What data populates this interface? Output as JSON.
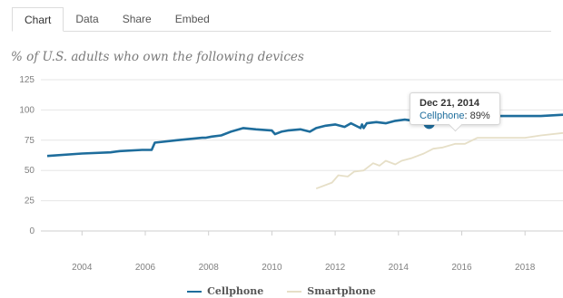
{
  "tabs": [
    {
      "label": "Chart",
      "active": true
    },
    {
      "label": "Data",
      "active": false
    },
    {
      "label": "Share",
      "active": false
    },
    {
      "label": "Embed",
      "active": false
    }
  ],
  "colors": {
    "cellphone": "#1e6d9c",
    "smartphone": "#e6dfc7",
    "grid": "#e6e6e6",
    "axis": "#cfcfcf"
  },
  "tooltip": {
    "date": "Dec 21, 2014",
    "series": "Cellphone",
    "value": "89%"
  },
  "chart_data": {
    "type": "line",
    "title": "% of U.S. adults who own the following devices",
    "xlabel": "",
    "ylabel": "",
    "ylim": [
      0,
      125
    ],
    "xlim": [
      2002.7,
      2019.2
    ],
    "yticks": [
      "0",
      "25",
      "50",
      "75",
      "100",
      "125"
    ],
    "xticks": [
      "2004",
      "2006",
      "2008",
      "2010",
      "2012",
      "2014",
      "2016",
      "2018"
    ],
    "grid": true,
    "legend": "bottom-center",
    "series": [
      {
        "name": "Cellphone",
        "x": [
          2002.9,
          2004.0,
          2004.9,
          2005.2,
          2005.9,
          2006.2,
          2006.3,
          2007.0,
          2007.8,
          2007.9,
          2008.1,
          2008.4,
          2008.7,
          2009.1,
          2009.5,
          2010.0,
          2010.1,
          2010.3,
          2010.5,
          2010.9,
          2011.2,
          2011.4,
          2011.7,
          2012.0,
          2012.3,
          2012.5,
          2012.8,
          2012.85,
          2012.9,
          2013.0,
          2013.3,
          2013.6,
          2013.9,
          2014.2,
          2014.5,
          2014.8,
          2014.97,
          2015.3,
          2015.7,
          2016.0,
          2016.5,
          2016.9,
          2017.5,
          2018.0,
          2018.5,
          2019.2
        ],
        "y": [
          62,
          64,
          65,
          66,
          67,
          67,
          73,
          75,
          77,
          77,
          78,
          79,
          82,
          85,
          84,
          83,
          80,
          82,
          83,
          84,
          82,
          85,
          87,
          88,
          86,
          89,
          85,
          88,
          85,
          89,
          90,
          89,
          91,
          92,
          91,
          90,
          89,
          91,
          92,
          92,
          93,
          95,
          95,
          95,
          95,
          96
        ]
      },
      {
        "name": "Smartphone",
        "x": [
          2011.4,
          2011.9,
          2012.1,
          2012.4,
          2012.6,
          2012.9,
          2013.2,
          2013.4,
          2013.6,
          2013.9,
          2014.1,
          2014.4,
          2014.8,
          2015.1,
          2015.4,
          2015.8,
          2016.1,
          2016.5,
          2016.9,
          2017.5,
          2018.0,
          2018.5,
          2019.2
        ],
        "y": [
          35,
          40,
          46,
          45,
          49,
          50,
          56,
          54,
          58,
          55,
          58,
          60,
          64,
          68,
          69,
          72,
          72,
          77,
          77,
          77,
          77,
          79,
          81
        ]
      }
    ]
  }
}
